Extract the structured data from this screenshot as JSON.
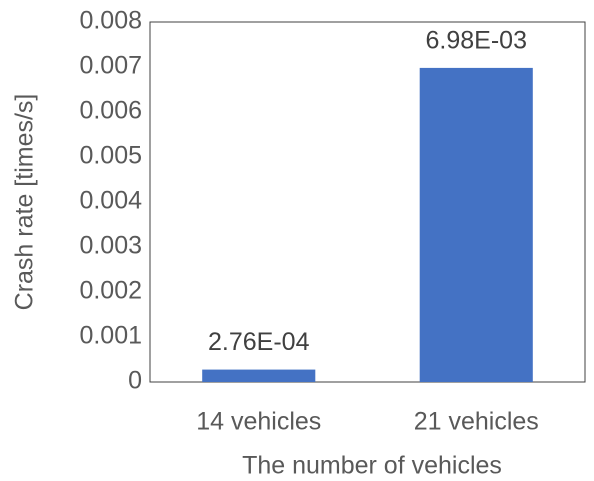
{
  "chart_data": {
    "type": "bar",
    "x_label": "The number of vehicles",
    "y_label": "Crash rate [times/s]",
    "categories": [
      "14 vehicles",
      "21 vehicles"
    ],
    "values": [
      0.000276,
      0.00698
    ],
    "value_labels": [
      "2.76E-04",
      "6.98E-03"
    ],
    "color": "#4472c4",
    "ylim": [
      0,
      0.008
    ],
    "yticks": [
      0,
      0.001,
      0.002,
      0.003,
      0.004,
      0.005,
      0.006,
      0.007,
      0.008
    ],
    "grid": false
  }
}
